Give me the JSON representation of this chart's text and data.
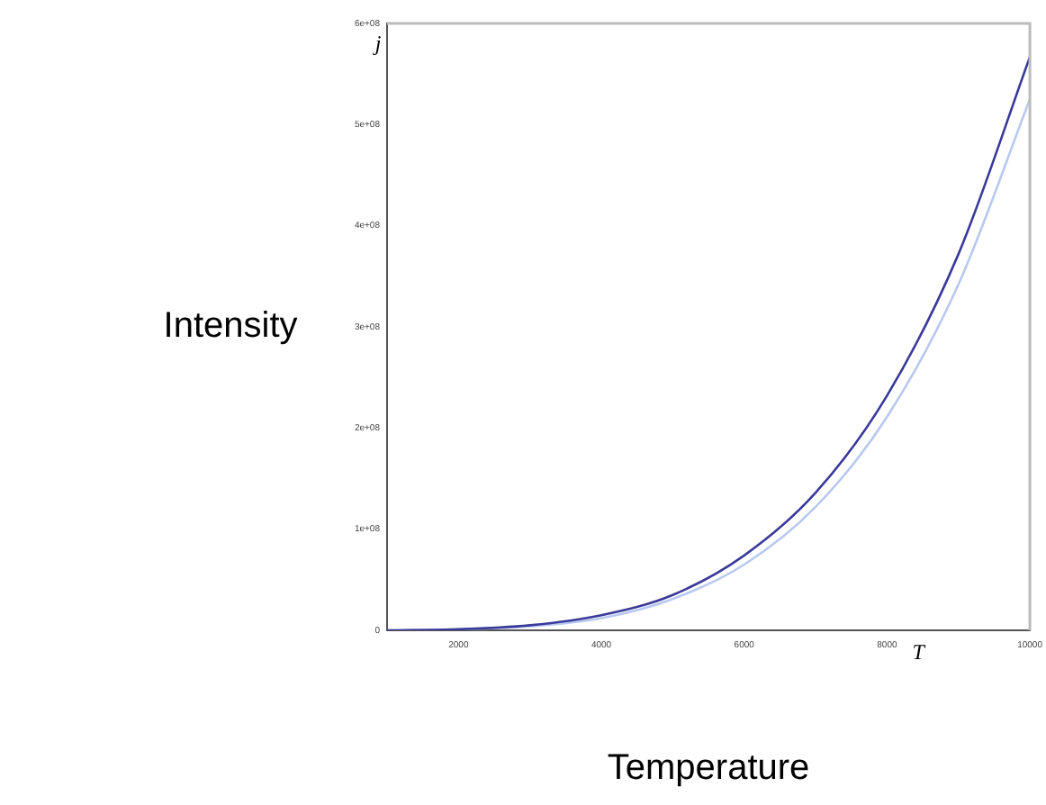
{
  "chart_data": {
    "type": "line",
    "xlabel": "Temperature",
    "ylabel": "Intensity",
    "annotations": [
      "j",
      "T"
    ],
    "x": [
      1000,
      2000,
      3000,
      4000,
      5000,
      6000,
      7000,
      8000,
      9000,
      10000
    ],
    "series": [
      {
        "color": "#3a3a9a",
        "values": [
          0,
          1000000,
          5000000,
          15000000,
          35000000,
          74000000,
          136000000,
          232000000,
          372000000,
          567000000
        ]
      },
      {
        "color": "#b8c8f0",
        "values": [
          0,
          1000000,
          4000000,
          12000000,
          31000000,
          65000000,
          122000000,
          211000000,
          342000000,
          525000000
        ]
      }
    ],
    "xlim": [
      1000,
      10000
    ],
    "xticks": [
      2000,
      4000,
      6000,
      8000,
      10000
    ],
    "ylim": [
      0,
      600000000
    ],
    "yticks": [
      {
        "value": 0,
        "label": "0"
      },
      {
        "value": 100000000,
        "label": "1e+08"
      },
      {
        "value": 200000000,
        "label": "2e+08"
      },
      {
        "value": 300000000,
        "label": "3e+08"
      },
      {
        "value": 400000000,
        "label": "4e+08"
      },
      {
        "value": 500000000,
        "label": "5e+08"
      },
      {
        "value": 600000000,
        "label": "6e+08"
      }
    ],
    "grid": false,
    "legend": false,
    "marker": "none",
    "line_style": "solid"
  }
}
